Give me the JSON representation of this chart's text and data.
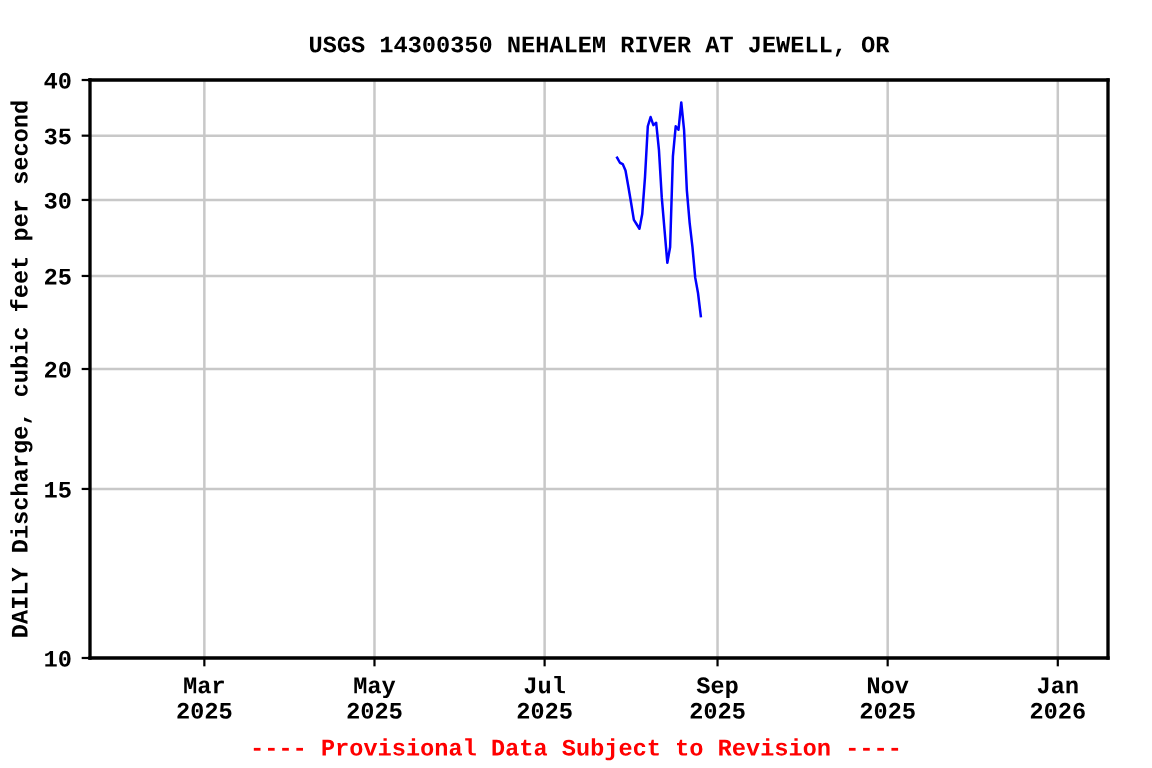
{
  "chart_data": {
    "type": "line",
    "title": "USGS 14300350 NEHALEM RIVER AT JEWELL, OR",
    "ylabel": "DAILY Discharge, cubic feet per second",
    "annotations": [
      "---- Provisional Data Subject to Revision ----"
    ],
    "x": [
      "2025-07-27",
      "2025-07-28",
      "2025-07-29",
      "2025-07-30",
      "2025-07-31",
      "2025-08-01",
      "2025-08-02",
      "2025-08-03",
      "2025-08-04",
      "2025-08-05",
      "2025-08-06",
      "2025-08-07",
      "2025-08-08",
      "2025-08-09",
      "2025-08-10",
      "2025-08-11",
      "2025-08-12",
      "2025-08-13",
      "2025-08-14",
      "2025-08-15",
      "2025-08-16",
      "2025-08-17",
      "2025-08-18",
      "2025-08-19",
      "2025-08-20",
      "2025-08-21",
      "2025-08-22",
      "2025-08-23",
      "2025-08-24",
      "2025-08-25",
      "2025-08-26"
    ],
    "series": [
      {
        "color": "#0000ff",
        "values": [
          33.2,
          32.8,
          32.7,
          32.2,
          31.0,
          29.8,
          28.6,
          28.3,
          28.0,
          29.0,
          31.7,
          35.8,
          36.6,
          35.9,
          36.1,
          33.8,
          30.2,
          27.9,
          25.8,
          26.8,
          33.3,
          35.8,
          35.5,
          37.9,
          35.5,
          30.7,
          28.4,
          26.8,
          24.9,
          24.0,
          22.7
        ]
      }
    ],
    "log": "y",
    "xlim": [
      "2025-01-19",
      "2026-01-19"
    ],
    "xticks": [
      {
        "value": "2025-03-01",
        "label": "Mar\n2025"
      },
      {
        "value": "2025-05-01",
        "label": "May\n2025"
      },
      {
        "value": "2025-07-01",
        "label": "Jul\n2025"
      },
      {
        "value": "2025-09-01",
        "label": "Sep\n2025"
      },
      {
        "value": "2025-11-01",
        "label": "Nov\n2025"
      },
      {
        "value": "2026-01-01",
        "label": "Jan\n2026"
      }
    ],
    "ylim": [
      10,
      40
    ],
    "yticks": [
      10,
      15,
      20,
      25,
      30,
      35,
      40
    ],
    "grid": true,
    "marker": "none",
    "line_style": "solid"
  }
}
